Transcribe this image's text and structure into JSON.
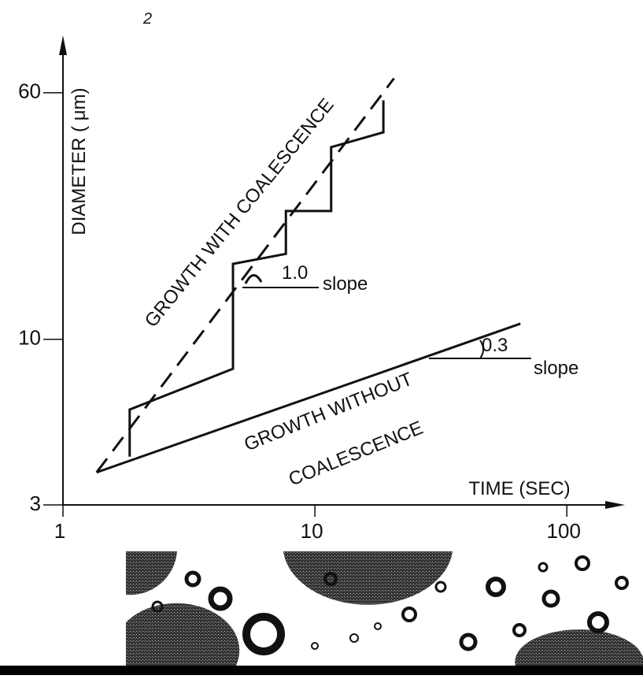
{
  "chart_data": {
    "type": "line",
    "figure_number": "2",
    "x_label": "TIME (SEC)",
    "y_label": "DIAMETER ( μm)",
    "log_x": true,
    "log_y": true,
    "xlim": [
      1,
      170
    ],
    "ylim": [
      3,
      91
    ],
    "xticks": [
      1,
      10,
      100
    ],
    "yticks": [
      3,
      10,
      60
    ],
    "curve_labels": [
      "GROWTH WITH COALESCENCE",
      "GROWTH WITHOUT",
      "COALESCENCE"
    ],
    "slope_annotations": [
      "1.0",
      "slope",
      "0.3",
      "slope"
    ],
    "series": [
      {
        "color": "#111111",
        "dashed": false,
        "x": [
          1.84,
          1.84,
          4.73,
          4.73,
          7.67,
          7.67,
          11.6,
          11.6,
          18.7,
          18.7
        ],
        "values": [
          4.26,
          6.0,
          8.07,
          17.3,
          18.6,
          25.4,
          25.4,
          40.4,
          45,
          56.8
        ]
      },
      {
        "color": "#111111",
        "dashed": true,
        "x": [
          1.36,
          20.6
        ],
        "values": [
          3.8,
          66.6
        ]
      },
      {
        "color": "#111111",
        "dashed": false,
        "x": [
          1.36,
          65.4
        ],
        "values": [
          3.8,
          11.2
        ]
      }
    ]
  }
}
